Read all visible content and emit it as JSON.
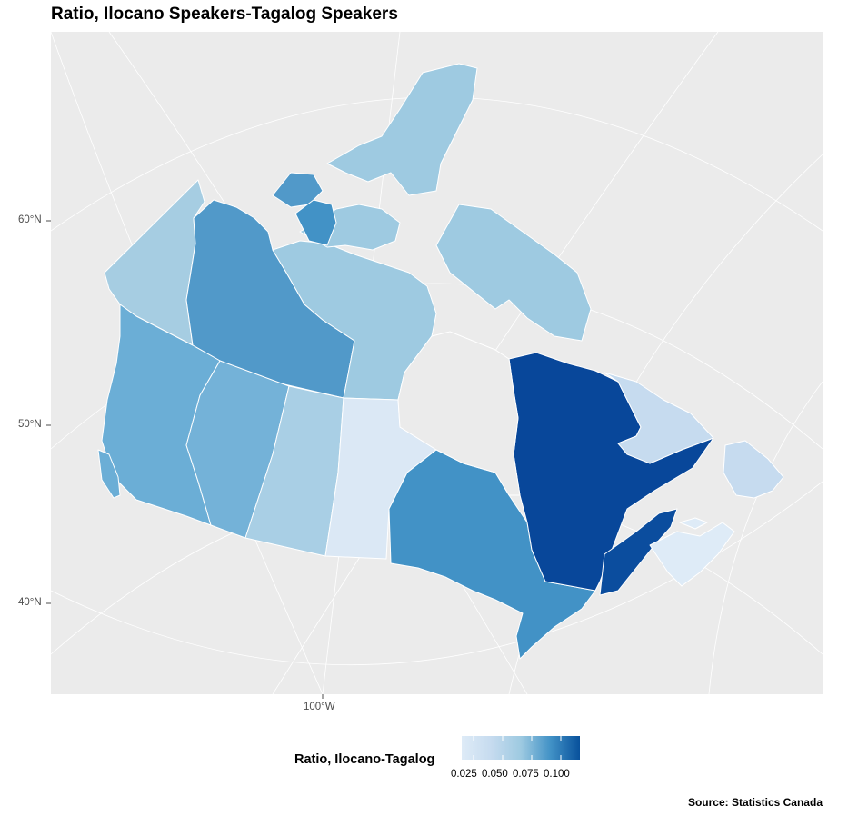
{
  "title": "Ratio, Ilocano Speakers-Tagalog Speakers",
  "axes": {
    "lat_labels": [
      "60°N",
      "50°N",
      "40°N"
    ],
    "lon_labels": [
      "100°W"
    ]
  },
  "legend": {
    "title": "Ratio, Ilocano-Tagalog",
    "ticks": [
      "0.025",
      "0.050",
      "0.075",
      "0.100"
    ],
    "color_low": "#deebf7",
    "color_high": "#08519c"
  },
  "caption": "Source: Statistics Canada",
  "colors": {
    "panel_background": "#ebebeb",
    "graticule": "#ffffff",
    "province_border": "#ffffff",
    "ungrouped_land": "#ebebeb"
  },
  "chart_data": {
    "type": "choropleth",
    "region": "Canada",
    "value_name": "Ratio, Ilocano-Tagalog",
    "scale": "continuous, light-to-dark blue",
    "regions": [
      {
        "name": "Yukon",
        "value": 0.055
      },
      {
        "name": "Northwest Territories",
        "value": 0.08
      },
      {
        "name": "Nunavut",
        "value": 0.05
      },
      {
        "name": "British Columbia",
        "value": 0.075
      },
      {
        "name": "Alberta",
        "value": 0.065
      },
      {
        "name": "Saskatchewan",
        "value": 0.05
      },
      {
        "name": "Manitoba",
        "value": 0.025
      },
      {
        "name": "Ontario",
        "value": 0.082
      },
      {
        "name": "Quebec",
        "value": 0.115
      },
      {
        "name": "Newfoundland and Labrador",
        "value": 0.032
      },
      {
        "name": "New Brunswick",
        "value": 0.105
      },
      {
        "name": "Nova Scotia",
        "value": 0.025
      },
      {
        "name": "Prince Edward Island",
        "value": 0.025
      }
    ]
  }
}
